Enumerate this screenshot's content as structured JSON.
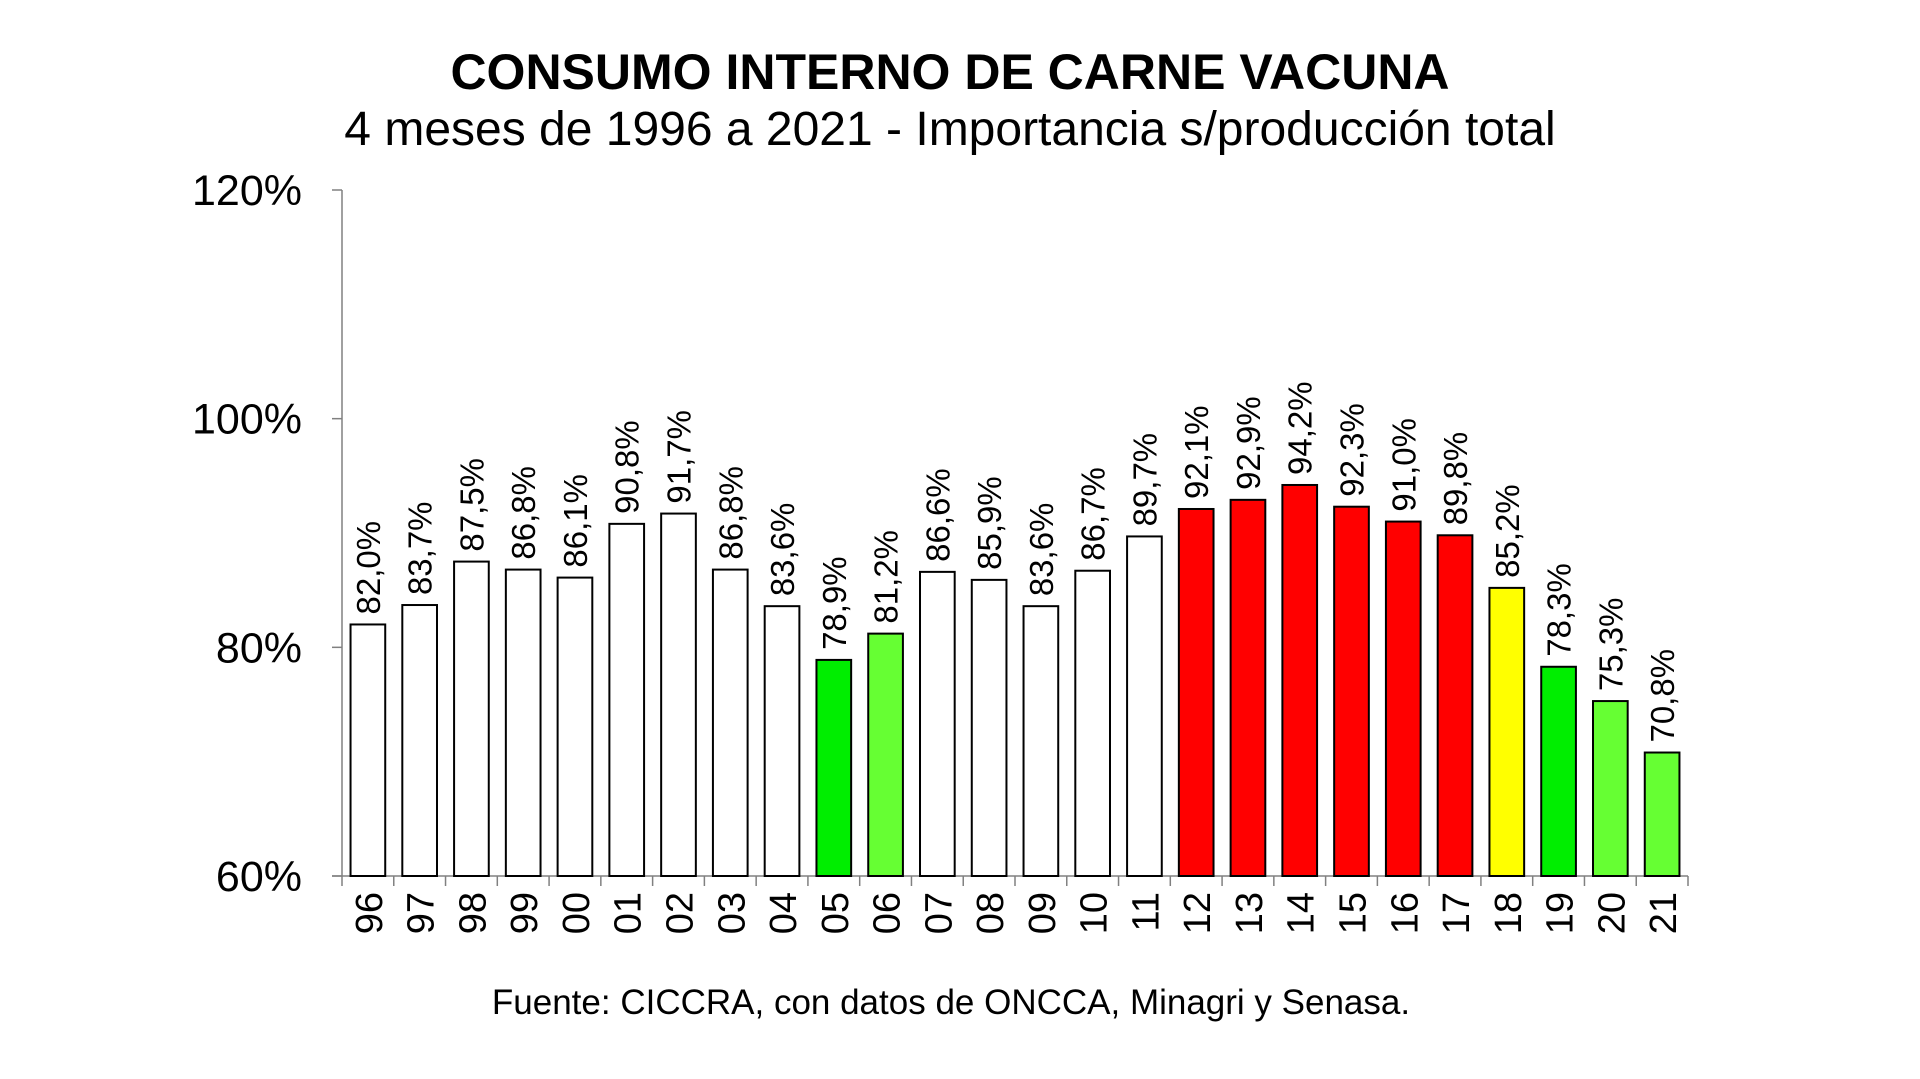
{
  "chart_data": {
    "type": "bar",
    "title": "CONSUMO INTERNO DE CARNE VACUNA",
    "subtitle": "4 meses de 1996 a 2021 - Importancia s/producción total",
    "source": "Fuente: CICCRA, con datos de ONCCA, Minagri y Senasa.",
    "ylim": [
      60,
      120
    ],
    "yticks": [
      60,
      80,
      100,
      120
    ],
    "ytick_labels": [
      "60%",
      "80%",
      "100%",
      "120%"
    ],
    "grid": false,
    "categories": [
      "96",
      "97",
      "98",
      "99",
      "00",
      "01",
      "02",
      "03",
      "04",
      "05",
      "06",
      "07",
      "08",
      "09",
      "10",
      "11",
      "12",
      "13",
      "14",
      "15",
      "16",
      "17",
      "18",
      "19",
      "20",
      "21"
    ],
    "values": [
      82.0,
      83.7,
      87.5,
      86.8,
      86.1,
      90.8,
      91.7,
      86.8,
      83.6,
      78.9,
      81.2,
      86.6,
      85.9,
      83.6,
      86.7,
      89.7,
      92.1,
      92.9,
      94.2,
      92.3,
      91.0,
      89.8,
      85.2,
      78.3,
      75.3,
      70.8
    ],
    "data_labels": [
      "82,0%",
      "83,7%",
      "87,5%",
      "86,8%",
      "86,1%",
      "90,8%",
      "91,7%",
      "86,8%",
      "83,6%",
      "78,9%",
      "81,2%",
      "86,6%",
      "85,9%",
      "83,6%",
      "86,7%",
      "89,7%",
      "92,1%",
      "92,9%",
      "94,2%",
      "92,3%",
      "91,0%",
      "89,8%",
      "85,2%",
      "78,3%",
      "75,3%",
      "70,8%"
    ],
    "bar_colors": [
      "#ffffff",
      "#ffffff",
      "#ffffff",
      "#ffffff",
      "#ffffff",
      "#ffffff",
      "#ffffff",
      "#ffffff",
      "#ffffff",
      "#00ee00",
      "#66ff33",
      "#ffffff",
      "#ffffff",
      "#ffffff",
      "#ffffff",
      "#ffffff",
      "#ff0000",
      "#ff0000",
      "#ff0000",
      "#ff0000",
      "#ff0000",
      "#ff0000",
      "#ffff00",
      "#00ee00",
      "#66ff33",
      "#66ff33"
    ]
  }
}
